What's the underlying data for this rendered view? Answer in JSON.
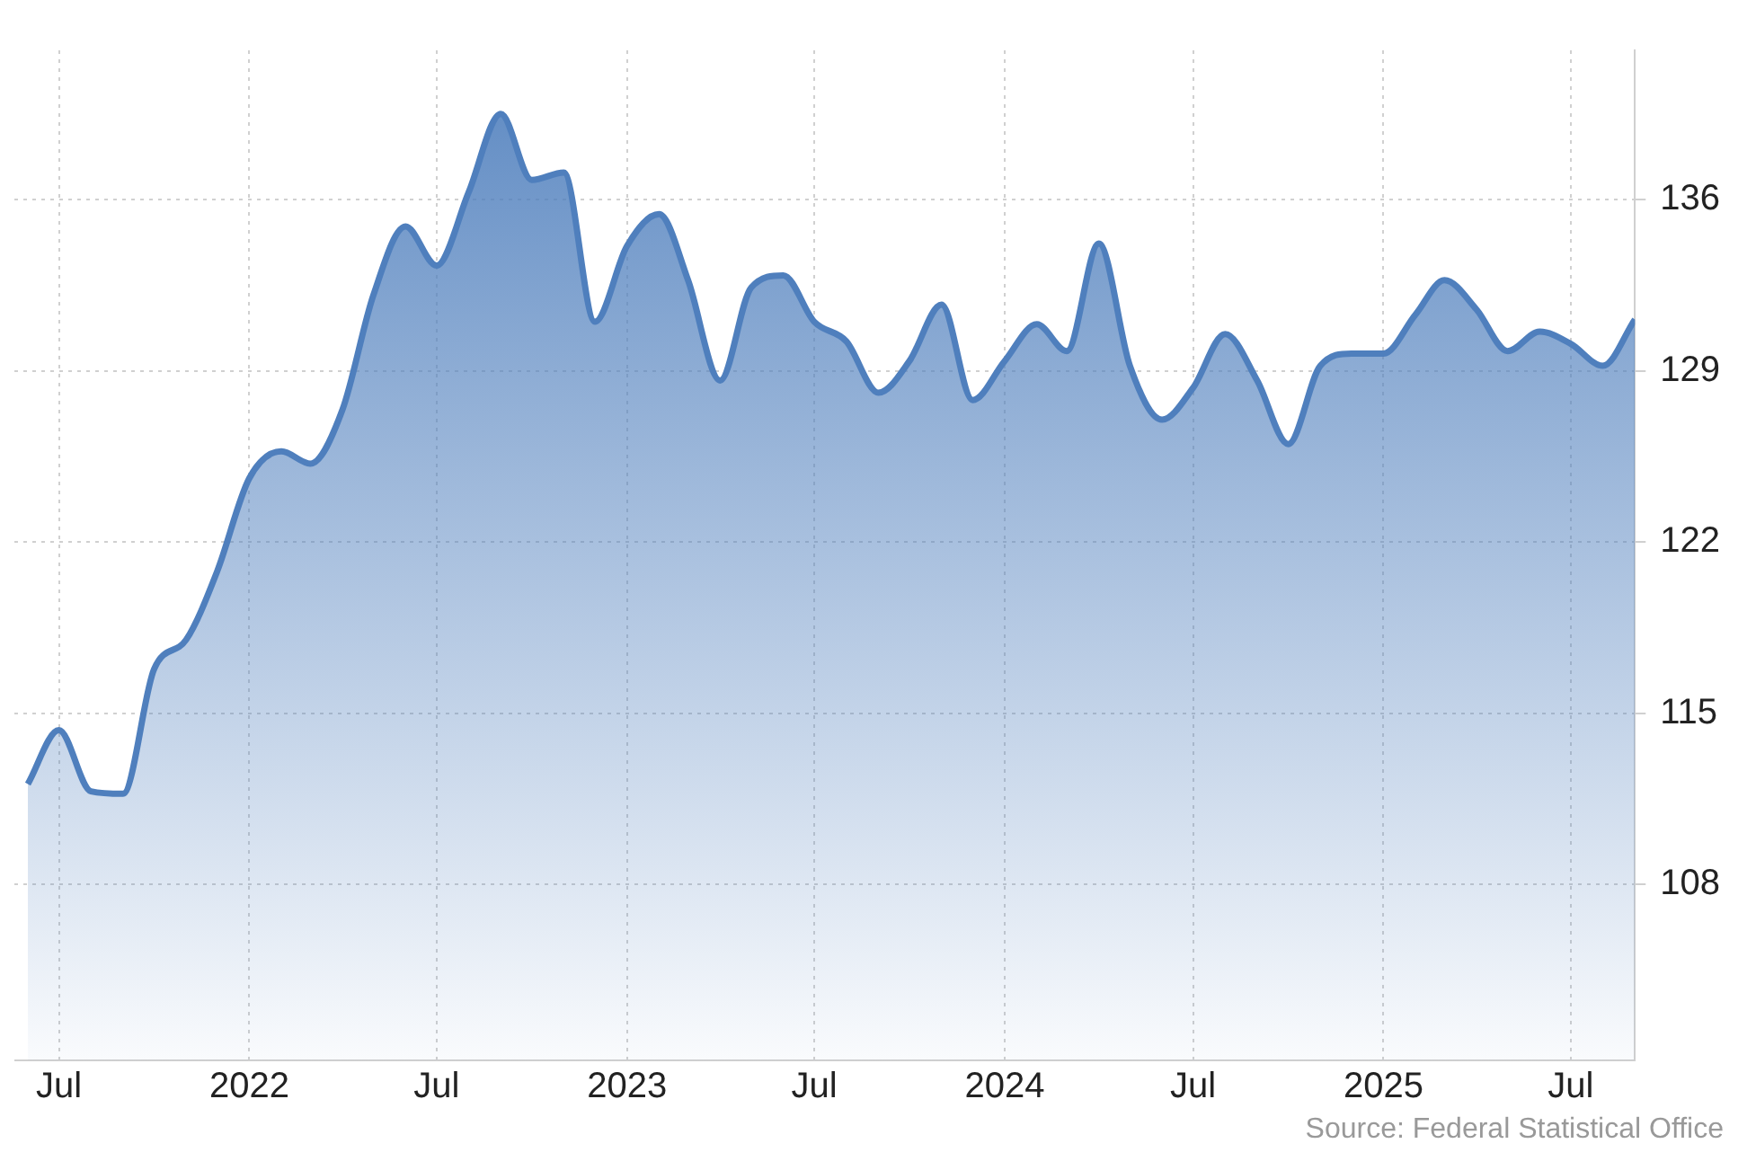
{
  "chart_data": {
    "type": "area",
    "x": [
      "2021-06",
      "2021-07",
      "2021-08",
      "2021-09",
      "2021-10",
      "2021-11",
      "2021-12",
      "2022-01",
      "2022-02",
      "2022-03",
      "2022-04",
      "2022-05",
      "2022-06",
      "2022-07",
      "2022-08",
      "2022-09",
      "2022-10",
      "2022-11",
      "2022-12",
      "2023-01",
      "2023-02",
      "2023-03",
      "2023-04",
      "2023-05",
      "2023-06",
      "2023-07",
      "2023-08",
      "2023-09",
      "2023-10",
      "2023-11",
      "2023-12",
      "2024-01",
      "2024-02",
      "2024-03",
      "2024-04",
      "2024-05",
      "2024-06",
      "2024-07",
      "2024-08",
      "2024-09",
      "2024-10",
      "2024-11",
      "2024-12",
      "2025-01",
      "2025-02",
      "2025-03",
      "2025-04",
      "2025-05",
      "2025-06",
      "2025-07",
      "2025-08",
      "2025-09"
    ],
    "series": [
      {
        "color": "#4f7fbd",
        "values": [
          112.1,
          114.3,
          111.8,
          111.7,
          116.8,
          118.0,
          120.8,
          124.6,
          125.7,
          125.2,
          127.4,
          132.1,
          134.9,
          133.3,
          136.3,
          139.5,
          136.8,
          137.1,
          131.0,
          134.1,
          135.4,
          132.7,
          128.6,
          132.4,
          132.9,
          131.0,
          130.2,
          128.1,
          129.4,
          131.7,
          127.8,
          129.4,
          130.9,
          129.8,
          134.2,
          129.2,
          127.0,
          128.3,
          130.5,
          128.6,
          126.0,
          129.2,
          129.7,
          129.7,
          131.3,
          132.7,
          131.5,
          129.8,
          130.6,
          130.1,
          129.2,
          131.1
        ]
      }
    ],
    "xlim": [
      "2021-05-19",
      "2025-09-01"
    ],
    "xticks": [
      {
        "value": "2021-07",
        "label": "Jul"
      },
      "2022",
      {
        "value": "2022-07",
        "label": "Jul"
      },
      "2023",
      {
        "value": "2023-07",
        "label": "Jul"
      },
      "2024",
      {
        "value": "2024-07",
        "label": "Jul"
      },
      "2025",
      {
        "value": "2025-07",
        "label": "Jul"
      }
    ],
    "ylim": [
      100.8,
      142.1
    ],
    "yticks": [
      108,
      115,
      122,
      129,
      136
    ],
    "grid": true,
    "marker": "none",
    "annotations": [
      "Source: Federal Statistical Office"
    ]
  }
}
